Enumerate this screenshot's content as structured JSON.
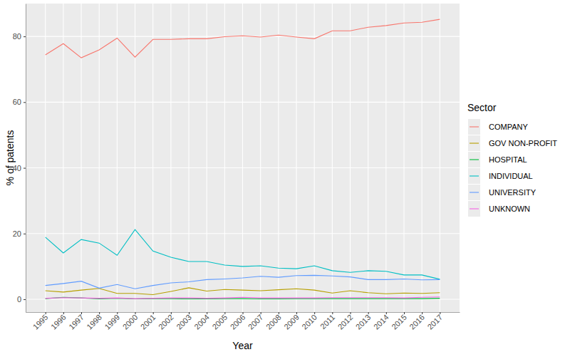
{
  "chart_data": {
    "type": "line",
    "x_label": "Year",
    "y_label": "% of patents",
    "legend_title": "Sector",
    "legend": "right",
    "grid": true,
    "x": [
      1995,
      1996,
      1997,
      1998,
      1999,
      2000,
      2001,
      2002,
      2003,
      2004,
      2005,
      2006,
      2007,
      2008,
      2009,
      2010,
      2011,
      2012,
      2013,
      2014,
      2015,
      2016,
      2017
    ],
    "xlim": [
      1993.9,
      2018.1
    ],
    "xticks": [
      1995,
      1996,
      1997,
      1998,
      1999,
      2000,
      2001,
      2002,
      2003,
      2004,
      2005,
      2006,
      2007,
      2008,
      2009,
      2010,
      2011,
      2012,
      2013,
      2014,
      2015,
      2016,
      2017
    ],
    "ylim": [
      -3.9,
      90
    ],
    "yticks": [
      0,
      20,
      40,
      60,
      80
    ],
    "series": [
      {
        "name": "COMPANY",
        "color": "#F8766D",
        "values": [
          74.4,
          77.8,
          73.5,
          75.9,
          79.5,
          73.7,
          79.1,
          79.1,
          79.3,
          79.3,
          79.9,
          80.2,
          79.8,
          80.4,
          79.8,
          79.3,
          81.7,
          81.7,
          82.8,
          83.3,
          84.1,
          84.3,
          85.2
        ]
      },
      {
        "name": "GOV NON-PROFIT",
        "color": "#B79F00",
        "values": [
          2.6,
          2.2,
          2.8,
          3.3,
          1.8,
          1.8,
          1.4,
          2.4,
          3.5,
          2.5,
          3.0,
          2.8,
          2.6,
          2.9,
          3.2,
          2.8,
          1.9,
          2.6,
          2.0,
          1.7,
          1.9,
          1.8,
          2.0
        ]
      },
      {
        "name": "HOSPITAL",
        "color": "#00BA38",
        "values": [
          0.2,
          0.6,
          0.4,
          0.1,
          0.3,
          0.1,
          0.2,
          0.2,
          0.1,
          0.1,
          0.2,
          0.2,
          0.1,
          0.1,
          0.2,
          0.2,
          0.2,
          0.2,
          0.2,
          0.2,
          0.2,
          0.2,
          0.3
        ]
      },
      {
        "name": "INDIVIDUAL",
        "color": "#00BFC4",
        "values": [
          18.9,
          14.1,
          18.2,
          17.1,
          13.4,
          21.2,
          14.7,
          12.8,
          11.5,
          11.5,
          10.4,
          10.0,
          10.2,
          9.5,
          9.3,
          10.2,
          8.7,
          8.2,
          8.7,
          8.5,
          7.4,
          7.4,
          6.1
        ]
      },
      {
        "name": "UNIVERSITY",
        "color": "#619CFF",
        "values": [
          4.2,
          4.8,
          5.5,
          3.4,
          4.5,
          3.2,
          4.2,
          5.0,
          5.3,
          6.0,
          6.2,
          6.5,
          7.0,
          6.7,
          7.2,
          7.3,
          7.1,
          6.8,
          6.0,
          6.0,
          6.2,
          5.9,
          6.0
        ]
      },
      {
        "name": "UNKNOWN",
        "color": "#F564E3",
        "values": [
          0.3,
          0.5,
          0.4,
          0.3,
          0.4,
          0.2,
          0.3,
          0.4,
          0.4,
          0.3,
          0.4,
          0.6,
          0.4,
          0.4,
          0.4,
          0.4,
          0.5,
          0.5,
          0.5,
          0.5,
          0.4,
          0.6,
          0.7
        ]
      }
    ]
  }
}
